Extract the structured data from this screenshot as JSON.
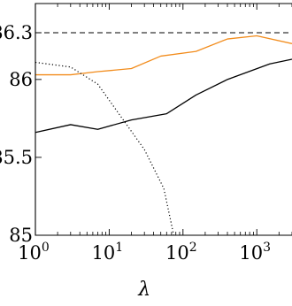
{
  "chart_data": {
    "type": "line",
    "title": "",
    "xlabel": "λ",
    "ylabel": "",
    "xscale": "log",
    "xlim": [
      1,
      3000
    ],
    "ylim": [
      85,
      86.45
    ],
    "grid": false,
    "legend": "none",
    "x_ticks": [
      {
        "base": "10",
        "exp": "0",
        "value": 1
      },
      {
        "base": "10",
        "exp": "1",
        "value": 10
      },
      {
        "base": "10",
        "exp": "2",
        "value": 100
      },
      {
        "base": "10",
        "exp": "3",
        "value": 1000
      }
    ],
    "y_ticks": [
      {
        "label": "85",
        "value": 85
      },
      {
        "label": "85.5",
        "value": 85.5
      },
      {
        "label": "86",
        "value": 86
      },
      {
        "label": "86.3",
        "value": 86.3
      }
    ],
    "reference_line": {
      "y": 86.3,
      "style": "dashed",
      "color": "#000000"
    },
    "series": [
      {
        "color": "#f28c1c",
        "style": "solid",
        "points": [
          [
            1,
            86.03
          ],
          [
            3,
            86.03
          ],
          [
            7,
            86.05
          ],
          [
            20,
            86.07
          ],
          [
            50,
            86.15
          ],
          [
            150,
            86.18
          ],
          [
            400,
            86.26
          ],
          [
            1000,
            86.28
          ],
          [
            3000,
            86.23
          ]
        ]
      },
      {
        "color": "#000000",
        "style": "solid",
        "points": [
          [
            1,
            85.66
          ],
          [
            3,
            85.71
          ],
          [
            7,
            85.68
          ],
          [
            20,
            85.74
          ],
          [
            60,
            85.78
          ],
          [
            150,
            85.9
          ],
          [
            400,
            86.0
          ],
          [
            1500,
            86.1
          ],
          [
            3000,
            86.13
          ]
        ]
      },
      {
        "color": "#000000",
        "style": "dotted",
        "points": [
          [
            1,
            86.11
          ],
          [
            3,
            86.08
          ],
          [
            7,
            85.97
          ],
          [
            15,
            85.75
          ],
          [
            30,
            85.55
          ],
          [
            55,
            85.3
          ],
          [
            75,
            85.0
          ]
        ]
      }
    ]
  }
}
